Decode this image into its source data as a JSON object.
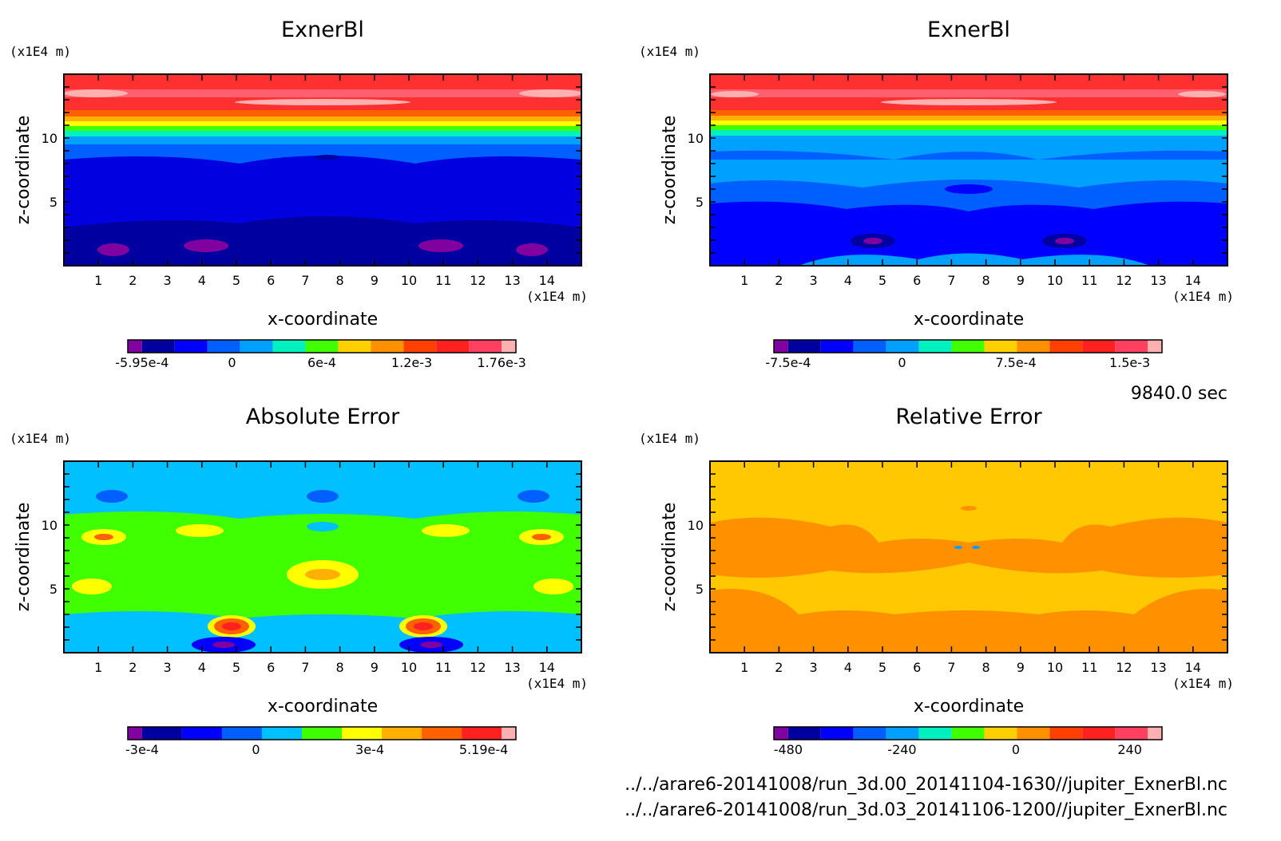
{
  "time_label": "9840.0 sec",
  "files": [
    "../../arare6-20141008/run_3d.00_20141104-1630//jupiter_ExnerBl.nc",
    "../../arare6-20141008/run_3d.03_20141106-1200//jupiter_ExnerBl.nc"
  ],
  "palette": [
    "#8000a0",
    "#0000a0",
    "#0000ff",
    "#0060ff",
    "#00b0ff",
    "#00f0c0",
    "#40ff00",
    "#ffff00",
    "#ffb000",
    "#ff6000",
    "#ff2020",
    "#ff4060",
    "#ffb0b0"
  ],
  "chart_data": [
    {
      "type": "heatmap",
      "title": "ExnerBl",
      "xlabel": "x-coordinate",
      "ylabel": "z-coordinate",
      "x_unit": "(x1E4 m)",
      "y_unit": "(x1E4 m)",
      "xlim": [
        0,
        15
      ],
      "ylim": [
        0,
        15
      ],
      "x_ticks": [
        "1",
        "2",
        "3",
        "4",
        "5",
        "6",
        "7",
        "8",
        "9",
        "10",
        "11",
        "12",
        "13",
        "14"
      ],
      "y_ticks": [
        "5",
        "10"
      ],
      "colorbar_labels": [
        "-5.95e-4",
        "0",
        "6e-4",
        "1.2e-3",
        "1.76e-3"
      ],
      "colorbar_colors": [
        "#8000a0",
        "#0000a0",
        "#0000ff",
        "#0060ff",
        "#00a0ff",
        "#00f0c0",
        "#40ff00",
        "#ffd000",
        "#ff9000",
        "#ff4000",
        "#ff2020",
        "#ff4060",
        "#ffb0b0"
      ]
    },
    {
      "type": "heatmap",
      "title": "ExnerBl",
      "xlabel": "x-coordinate",
      "ylabel": "z-coordinate",
      "x_unit": "(x1E4 m)",
      "y_unit": "(x1E4 m)",
      "xlim": [
        0,
        15
      ],
      "ylim": [
        0,
        15
      ],
      "x_ticks": [
        "1",
        "2",
        "3",
        "4",
        "5",
        "6",
        "7",
        "8",
        "9",
        "10",
        "11",
        "12",
        "13",
        "14"
      ],
      "y_ticks": [
        "5",
        "10"
      ],
      "colorbar_labels": [
        "-7.5e-4",
        "0",
        "7.5e-4",
        "1.5e-3"
      ],
      "colorbar_colors": [
        "#8000a0",
        "#0000a0",
        "#0000ff",
        "#0060ff",
        "#00a0ff",
        "#00f0c0",
        "#40ff00",
        "#ffd000",
        "#ff9000",
        "#ff4000",
        "#ff2020",
        "#ff4060",
        "#ffb0b0"
      ]
    },
    {
      "type": "heatmap",
      "title": "Absolute Error",
      "xlabel": "x-coordinate",
      "ylabel": "z-coordinate",
      "x_unit": "(x1E4 m)",
      "y_unit": "(x1E4 m)",
      "xlim": [
        0,
        15
      ],
      "ylim": [
        0,
        15
      ],
      "x_ticks": [
        "1",
        "2",
        "3",
        "4",
        "5",
        "6",
        "7",
        "8",
        "9",
        "10",
        "11",
        "12",
        "13",
        "14"
      ],
      "y_ticks": [
        "5",
        "10"
      ],
      "colorbar_labels": [
        "-3e-4",
        "0",
        "3e-4",
        "5.19e-4"
      ],
      "colorbar_colors": [
        "#8000a0",
        "#0000a0",
        "#0000ff",
        "#0060ff",
        "#00c0ff",
        "#40ff00",
        "#ffff00",
        "#ffb000",
        "#ff6000",
        "#ff2020",
        "#ffb0b0"
      ]
    },
    {
      "type": "heatmap",
      "title": "Relative Error",
      "xlabel": "x-coordinate",
      "ylabel": "z-coordinate",
      "x_unit": "(x1E4 m)",
      "y_unit": "(x1E4 m)",
      "xlim": [
        0,
        15
      ],
      "ylim": [
        0,
        15
      ],
      "x_ticks": [
        "1",
        "2",
        "3",
        "4",
        "5",
        "6",
        "7",
        "8",
        "9",
        "10",
        "11",
        "12",
        "13",
        "14"
      ],
      "y_ticks": [
        "5",
        "10"
      ],
      "colorbar_labels": [
        "-480",
        "-240",
        "0",
        "240"
      ],
      "colorbar_colors": [
        "#8000a0",
        "#0000a0",
        "#0000ff",
        "#0060ff",
        "#00a0ff",
        "#00f0c0",
        "#40ff00",
        "#ffd000",
        "#ff9000",
        "#ff4000",
        "#ff2020",
        "#ff4060",
        "#ffb0b0"
      ]
    }
  ]
}
